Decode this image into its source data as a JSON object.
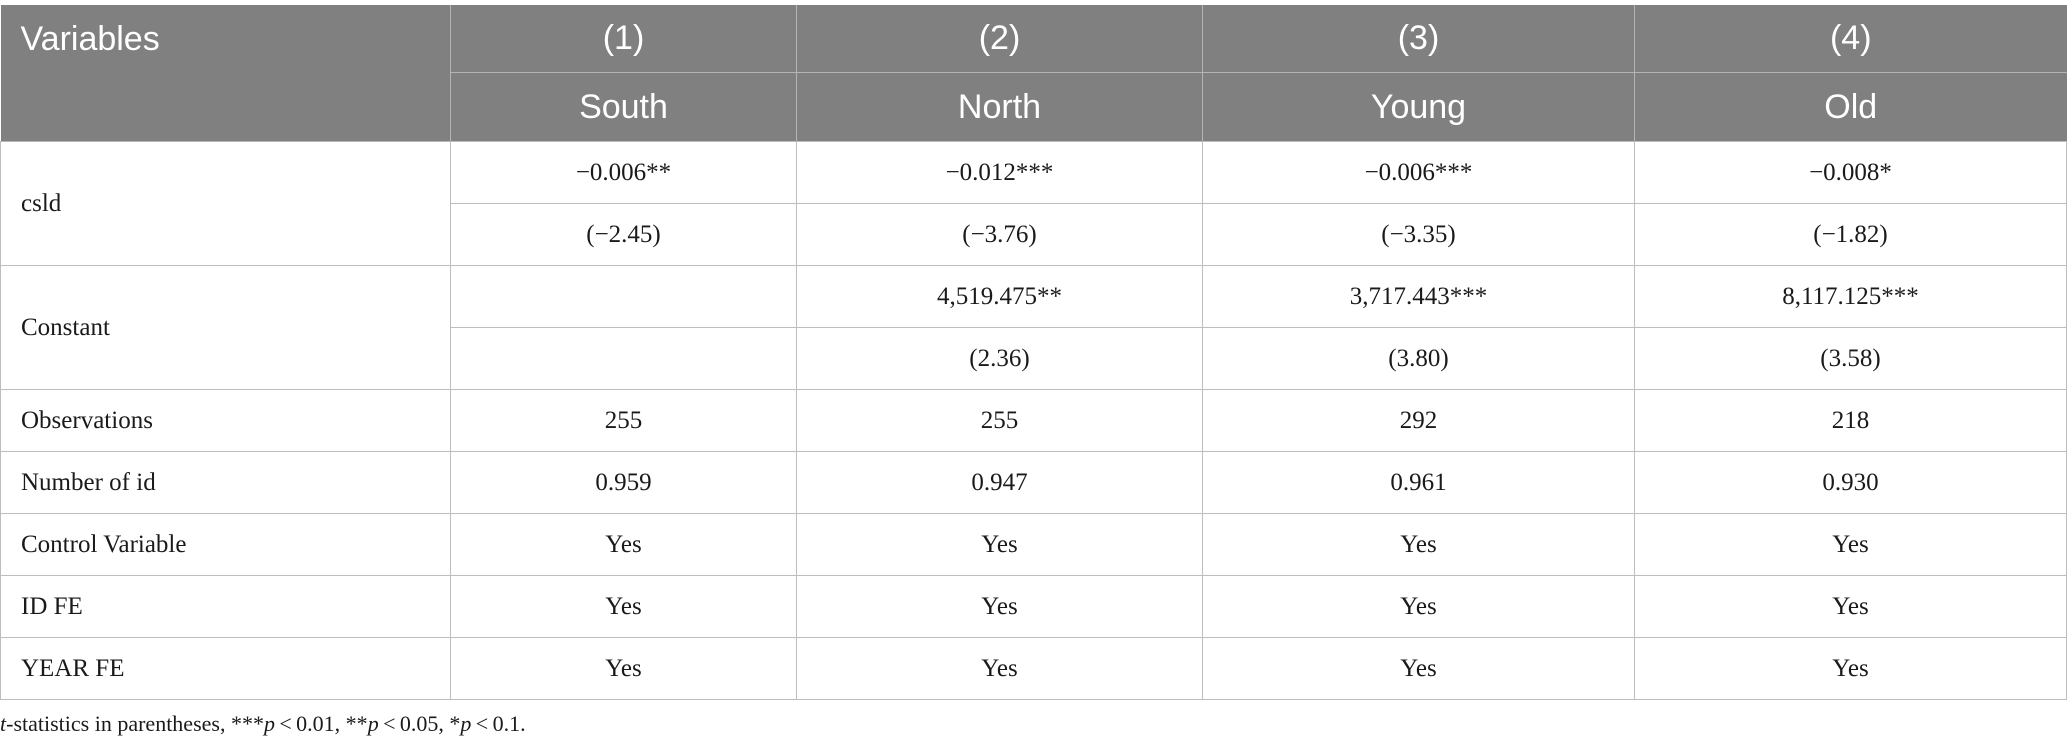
{
  "header": {
    "variables_label": "Variables",
    "columns": [
      {
        "number": "(1)",
        "name": "South"
      },
      {
        "number": "(2)",
        "name": "North"
      },
      {
        "number": "(3)",
        "name": "Young"
      },
      {
        "number": "(4)",
        "name": "Old"
      }
    ]
  },
  "rows": {
    "csld": {
      "label": "csld",
      "coef": [
        "−0.006**",
        "−0.012***",
        "−0.006***",
        "−0.008*"
      ],
      "tstat": [
        "(−2.45)",
        "(−3.76)",
        "(−3.35)",
        "(−1.82)"
      ]
    },
    "constant": {
      "label": "Constant",
      "coef": [
        "",
        "4,519.475**",
        "3,717.443***",
        "8,117.125***"
      ],
      "tstat": [
        "",
        "(2.36)",
        "(3.80)",
        "(3.58)"
      ]
    },
    "observations": {
      "label": "Observations",
      "values": [
        "255",
        "255",
        "292",
        "218"
      ]
    },
    "number_of_id": {
      "label": "Number of id",
      "values": [
        "0.959",
        "0.947",
        "0.961",
        "0.930"
      ]
    },
    "control_variable": {
      "label": "Control Variable",
      "values": [
        "Yes",
        "Yes",
        "Yes",
        "Yes"
      ]
    },
    "id_fe": {
      "label": "ID FE",
      "values": [
        "Yes",
        "Yes",
        "Yes",
        "Yes"
      ]
    },
    "year_fe": {
      "label": "YEAR FE",
      "values": [
        "Yes",
        "Yes",
        "Yes",
        "Yes"
      ]
    }
  },
  "footnote": {
    "t": "t",
    "part1": "-statistics in parentheses, ***",
    "p1": "p",
    "part2": " < 0.01, **",
    "p2": "p",
    "part3": " < 0.05, *",
    "p3": "p",
    "part4": " < 0.1."
  }
}
